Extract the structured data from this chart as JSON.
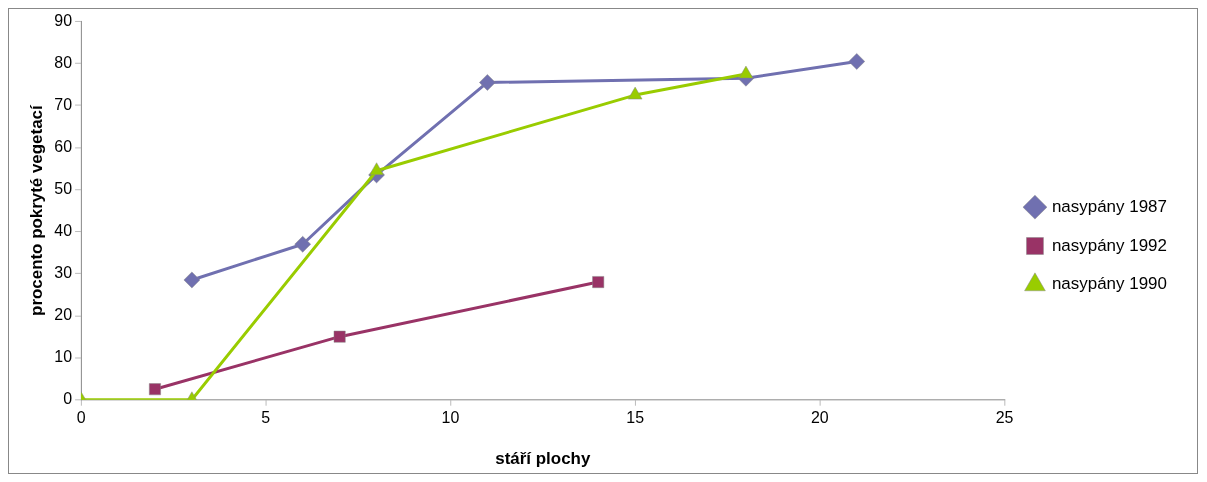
{
  "chart_data": {
    "type": "line",
    "xlabel": "stáří plochy",
    "ylabel": "procento pokryté vegetací",
    "xlim": [
      0,
      25
    ],
    "xticks": [
      0,
      5,
      10,
      15,
      20,
      25
    ],
    "ylim": [
      0,
      90
    ],
    "yticks": [
      0,
      10,
      20,
      30,
      40,
      50,
      60,
      70,
      80,
      90
    ],
    "grid": false,
    "legend": "right",
    "series": [
      {
        "name": "nasypány 1987",
        "color": "#7070b0",
        "marker": "diamond",
        "x": [
          3,
          6,
          8,
          11,
          18,
          21
        ],
        "values": [
          28.5,
          37,
          53.5,
          75.5,
          76.5,
          80.5
        ]
      },
      {
        "name": "nasypány 1992",
        "color": "#993366",
        "marker": "square",
        "x": [
          2,
          7,
          14
        ],
        "values": [
          2.5,
          15,
          28
        ]
      },
      {
        "name": "nasypány 1990",
        "color": "#99cc00",
        "marker": "triangle",
        "x": [
          0,
          3,
          8,
          15,
          18
        ],
        "values": [
          0,
          0,
          54.5,
          72.5,
          77.5
        ]
      }
    ]
  }
}
